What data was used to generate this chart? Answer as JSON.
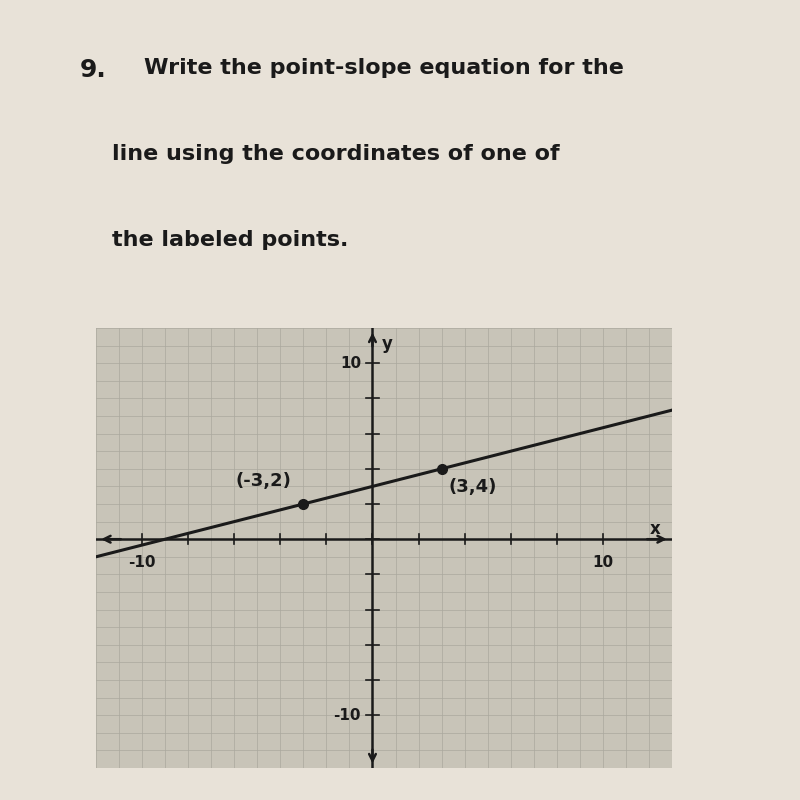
{
  "title_number": "9.",
  "title_line1": "Write the point-slope equation for the",
  "title_line2": "line using the coordinates of one of",
  "title_line3": "the labeled points.",
  "point1": [
    -3,
    2
  ],
  "point2": [
    3,
    4
  ],
  "point1_label": "(-3,2)",
  "point2_label": "(3,4)",
  "xlim": [
    -12,
    13
  ],
  "ylim": [
    -13,
    12
  ],
  "xlabel": "x",
  "ylabel": "y",
  "bg_color": "#c8c4b8",
  "paper_color": "#e8e2d8",
  "grid_color": "#aaa89e",
  "line_color": "#1a1a1a",
  "point_color": "#1a1a1a",
  "text_color": "#1a1a1a",
  "title_font_size": 16,
  "label_font_size": 12,
  "tick_font_size": 11,
  "axis_label_font_size": 12
}
